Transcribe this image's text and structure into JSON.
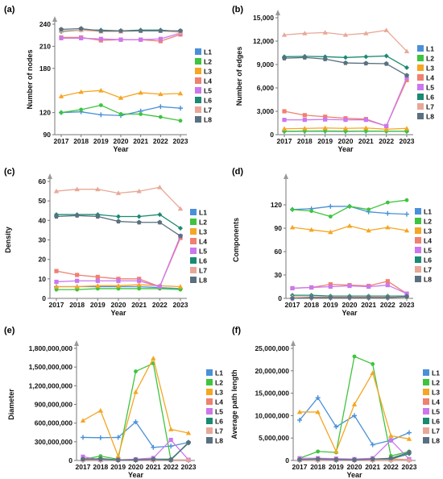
{
  "figure": {
    "legend_labels": [
      "L1",
      "L2",
      "L3",
      "L4",
      "L5",
      "L6",
      "L7",
      "L8"
    ],
    "series_colors": [
      "#4a90d9",
      "#3ec43e",
      "#f5a623",
      "#f08070",
      "#cc77ee",
      "#1a8a72",
      "#e8a898",
      "#5a7080"
    ]
  },
  "chart_data": [
    {
      "type": "line",
      "panel_label": "(a)",
      "xlabel": "Year",
      "ylabel": "Number of nodes",
      "x": [
        "2017",
        "2018",
        "2019",
        "2020",
        "2021",
        "2022",
        "2023"
      ],
      "ylim": [
        90,
        240
      ],
      "yticks": [
        90,
        120,
        180,
        210,
        240
      ],
      "ytick_labels": [
        "90",
        "120",
        "180",
        "210",
        "240"
      ],
      "grid": false,
      "legend": "right",
      "series": [
        {
          "name": "L1",
          "values": [
            120,
            121,
            117,
            116,
            122,
            128,
            126
          ]
        },
        {
          "name": "L2",
          "values": [
            120,
            124,
            130,
            118,
            118,
            114,
            109
          ]
        },
        {
          "name": "L3",
          "values": [
            142,
            148,
            150,
            140,
            147,
            145,
            146
          ]
        },
        {
          "name": "L4",
          "values": [
            222,
            222,
            218,
            219,
            219,
            217,
            226
          ]
        },
        {
          "name": "L5",
          "values": [
            221,
            221,
            220,
            219,
            219,
            220,
            228
          ]
        },
        {
          "name": "L6",
          "values": [
            230,
            232,
            232,
            231,
            232,
            232,
            230
          ]
        },
        {
          "name": "L7",
          "values": [
            231,
            232,
            230,
            230,
            231,
            231,
            229
          ]
        },
        {
          "name": "L8",
          "values": [
            233,
            234,
            231,
            231,
            231,
            231,
            231
          ]
        }
      ]
    },
    {
      "type": "line",
      "panel_label": "(b)",
      "xlabel": "Year",
      "ylabel": "Number of edges",
      "x": [
        "2017",
        "2018",
        "2019",
        "2020",
        "2021",
        "2022",
        "2023"
      ],
      "ylim": [
        0,
        15000
      ],
      "yticks": [
        0,
        3000,
        6000,
        9000,
        12000,
        15000
      ],
      "ytick_labels": [
        "0",
        "3,000",
        "6,000",
        "9,000",
        "12,000",
        "15,000"
      ],
      "grid": false,
      "legend": "right",
      "series": [
        {
          "name": "L1",
          "values": [
            420,
            430,
            430,
            420,
            440,
            440,
            430
          ]
        },
        {
          "name": "L2",
          "values": [
            440,
            460,
            470,
            450,
            460,
            450,
            420
          ]
        },
        {
          "name": "L3",
          "values": [
            750,
            800,
            850,
            800,
            850,
            700,
            800
          ]
        },
        {
          "name": "L4",
          "values": [
            3000,
            2500,
            2300,
            2100,
            2000,
            1100,
            7000
          ]
        },
        {
          "name": "L5",
          "values": [
            1900,
            1900,
            1950,
            1900,
            1900,
            1100,
            7300
          ]
        },
        {
          "name": "L6",
          "values": [
            10000,
            10050,
            10000,
            9900,
            10000,
            10100,
            8600
          ]
        },
        {
          "name": "L7",
          "values": [
            12800,
            13000,
            13100,
            12800,
            13000,
            13400,
            10700
          ]
        },
        {
          "name": "L8",
          "values": [
            9800,
            9900,
            9700,
            9200,
            9150,
            9100,
            7600
          ]
        }
      ]
    },
    {
      "type": "line",
      "panel_label": "(c)",
      "xlabel": "Year",
      "ylabel": "Density",
      "x": [
        "2017",
        "2018",
        "2019",
        "2020",
        "2021",
        "2022",
        "2023"
      ],
      "ylim": [
        0,
        60
      ],
      "yticks": [
        0,
        10,
        20,
        30,
        40,
        50,
        60
      ],
      "ytick_labels": [
        "0",
        "10",
        "20",
        "30",
        "40",
        "50",
        "60"
      ],
      "grid": false,
      "legend": "right",
      "series": [
        {
          "name": "L1",
          "values": [
            6,
            6,
            6,
            6,
            6,
            5.5,
            5
          ]
        },
        {
          "name": "L2",
          "values": [
            4.5,
            4.5,
            5,
            5,
            5,
            5,
            4.5
          ]
        },
        {
          "name": "L3",
          "values": [
            6,
            6,
            6.5,
            6.5,
            7,
            6.5,
            6
          ]
        },
        {
          "name": "L4",
          "values": [
            14,
            12,
            11,
            10,
            10,
            6,
            31
          ]
        },
        {
          "name": "L5",
          "values": [
            8.5,
            9,
            9,
            9,
            9,
            6,
            32
          ]
        },
        {
          "name": "L6",
          "values": [
            43,
            43,
            43,
            42,
            42,
            43,
            36
          ]
        },
        {
          "name": "L7",
          "values": [
            55,
            56,
            56,
            54,
            55,
            57,
            46
          ]
        },
        {
          "name": "L8",
          "values": [
            42,
            42.5,
            42,
            39.5,
            39,
            39,
            32
          ]
        }
      ]
    },
    {
      "type": "line",
      "panel_label": "(d)",
      "xlabel": "Year",
      "ylabel": "Components",
      "x": [
        "2017",
        "2018",
        "2019",
        "2020",
        "2021",
        "2022",
        "2023"
      ],
      "ylim": [
        0,
        150
      ],
      "yticks": [
        0,
        30,
        60,
        90,
        120
      ],
      "ytick_labels": [
        "0",
        "30",
        "60",
        "90",
        "120"
      ],
      "grid": false,
      "legend": "right",
      "series": [
        {
          "name": "L1",
          "values": [
            114,
            115,
            118,
            118,
            111,
            109,
            108
          ]
        },
        {
          "name": "L2",
          "values": [
            114,
            112,
            105,
            118,
            114,
            123,
            126
          ]
        },
        {
          "name": "L3",
          "values": [
            91,
            88,
            85,
            93,
            87,
            91,
            87
          ]
        },
        {
          "name": "L4",
          "values": [
            13,
            14,
            18,
            17,
            16,
            22,
            6
          ]
        },
        {
          "name": "L5",
          "values": [
            13,
            14,
            15,
            16,
            15,
            17,
            6
          ]
        },
        {
          "name": "L6",
          "values": [
            4,
            4,
            3,
            3,
            3,
            3,
            3
          ]
        },
        {
          "name": "L7",
          "values": [
            2,
            2,
            2,
            2,
            2,
            2,
            2
          ]
        },
        {
          "name": "L8",
          "values": [
            0,
            1,
            1,
            1,
            1,
            1,
            2
          ]
        }
      ]
    },
    {
      "type": "line",
      "panel_label": "(e)",
      "xlabel": "Year",
      "ylabel": "Diameter",
      "x": [
        "2017",
        "2018",
        "2019",
        "2020",
        "2021",
        "2022",
        "2023"
      ],
      "ylim": [
        0,
        1800000000
      ],
      "yticks": [
        0,
        300000000,
        600000000,
        900000000,
        1200000000,
        1500000000,
        1800000000
      ],
      "ytick_labels": [
        "0",
        "300,000,000",
        "600,000,000",
        "900,000,000",
        "1,200,000,000",
        "1,500,000,000",
        "1,800,000,000"
      ],
      "grid": false,
      "legend": "right",
      "series": [
        {
          "name": "L1",
          "values": [
            370000000,
            365000000,
            370000000,
            620000000,
            210000000,
            230000000,
            290000000
          ]
        },
        {
          "name": "L2",
          "values": [
            20000000,
            70000000,
            20000000,
            1430000000,
            1560000000,
            10000000,
            280000000
          ]
        },
        {
          "name": "L3",
          "values": [
            640000000,
            800000000,
            70000000,
            1100000000,
            1640000000,
            500000000,
            440000000
          ]
        },
        {
          "name": "L4",
          "values": [
            20000000,
            20000000,
            10000000,
            10000000,
            20000000,
            10000000,
            10000000
          ]
        },
        {
          "name": "L5",
          "values": [
            60000000,
            10000000,
            10000000,
            20000000,
            40000000,
            330000000,
            10000000
          ]
        },
        {
          "name": "L6",
          "values": [
            10000000,
            30000000,
            10000000,
            10000000,
            20000000,
            20000000,
            280000000
          ]
        },
        {
          "name": "L7",
          "values": [
            10000000,
            10000000,
            10000000,
            10000000,
            10000000,
            10000000,
            10000000
          ]
        },
        {
          "name": "L8",
          "values": [
            20000000,
            20000000,
            10000000,
            10000000,
            20000000,
            10000000,
            290000000
          ]
        }
      ]
    },
    {
      "type": "line",
      "panel_label": "(f)",
      "xlabel": "Year",
      "ylabel": "Average path length",
      "x": [
        "2017",
        "2018",
        "2019",
        "2020",
        "2021",
        "2022",
        "2023"
      ],
      "ylim": [
        0,
        25000000
      ],
      "yticks": [
        0,
        5000000,
        10000000,
        15000000,
        20000000,
        25000000
      ],
      "ytick_labels": [
        "0",
        "5,000,000",
        "10,000,000",
        "15,000,000",
        "20,000,000",
        "25,000,000"
      ],
      "grid": false,
      "legend": "right",
      "series": [
        {
          "name": "L1",
          "values": [
            9000000,
            14000000,
            7500000,
            10000000,
            3500000,
            4500000,
            6200000
          ]
        },
        {
          "name": "L2",
          "values": [
            500000,
            2000000,
            1800000,
            23200000,
            21500000,
            1000000,
            2000000
          ]
        },
        {
          "name": "L3",
          "values": [
            10800000,
            10800000,
            2000000,
            12500000,
            19500000,
            5500000,
            4800000
          ]
        },
        {
          "name": "L4",
          "values": [
            200000,
            200000,
            150000,
            100000,
            200000,
            300000,
            200000
          ]
        },
        {
          "name": "L5",
          "values": [
            500000,
            500000,
            400000,
            300000,
            500000,
            4500000,
            300000
          ]
        },
        {
          "name": "L6",
          "values": [
            200000,
            300000,
            200000,
            150000,
            200000,
            300000,
            1500000
          ]
        },
        {
          "name": "L7",
          "values": [
            100000,
            100000,
            100000,
            100000,
            100000,
            100000,
            100000
          ]
        },
        {
          "name": "L8",
          "values": [
            200000,
            300000,
            200000,
            150000,
            300000,
            500000,
            1800000
          ]
        }
      ]
    }
  ]
}
